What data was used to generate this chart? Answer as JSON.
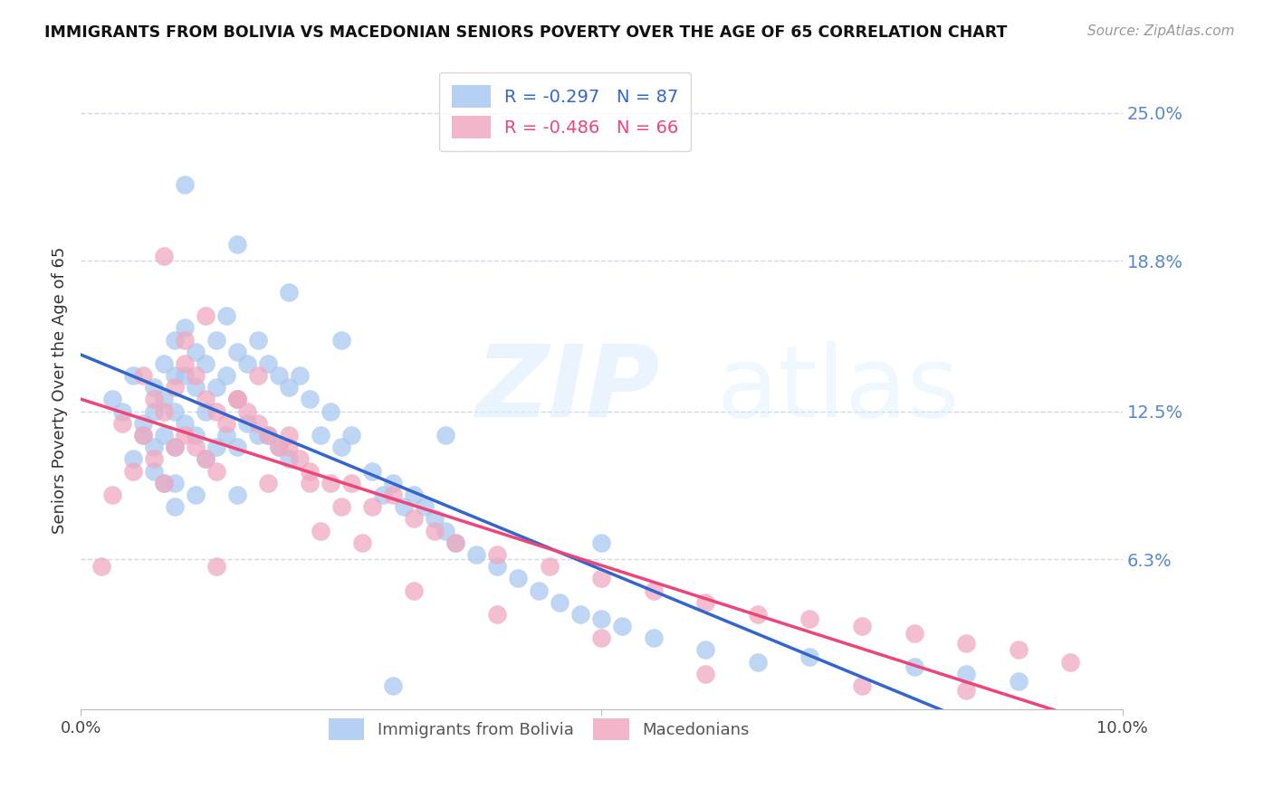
{
  "title": "IMMIGRANTS FROM BOLIVIA VS MACEDONIAN SENIORS POVERTY OVER THE AGE OF 65 CORRELATION CHART",
  "source": "Source: ZipAtlas.com",
  "ylabel": "Seniors Poverty Over the Age of 65",
  "ytick_labels": [
    "25.0%",
    "18.8%",
    "12.5%",
    "6.3%"
  ],
  "ytick_values": [
    0.25,
    0.188,
    0.125,
    0.063
  ],
  "xlim": [
    0.0,
    0.1
  ],
  "ylim": [
    0.0,
    0.268
  ],
  "legend1_label": "R = -0.297   N = 87",
  "legend2_label": "R = -0.486   N = 66",
  "series1_color": "#a8c8f0",
  "series2_color": "#f0a8c0",
  "line1_color": "#3366cc",
  "line2_color": "#ee4477",
  "line1_dash_color": "#aaccee",
  "bolivia_x": [
    0.003,
    0.004,
    0.005,
    0.005,
    0.006,
    0.006,
    0.007,
    0.007,
    0.007,
    0.007,
    0.008,
    0.008,
    0.008,
    0.008,
    0.009,
    0.009,
    0.009,
    0.009,
    0.009,
    0.009,
    0.01,
    0.01,
    0.01,
    0.011,
    0.011,
    0.011,
    0.011,
    0.012,
    0.012,
    0.012,
    0.013,
    0.013,
    0.013,
    0.014,
    0.014,
    0.014,
    0.015,
    0.015,
    0.015,
    0.015,
    0.016,
    0.016,
    0.017,
    0.017,
    0.018,
    0.018,
    0.019,
    0.019,
    0.02,
    0.02,
    0.021,
    0.022,
    0.023,
    0.024,
    0.025,
    0.026,
    0.028,
    0.029,
    0.03,
    0.031,
    0.032,
    0.033,
    0.034,
    0.035,
    0.036,
    0.038,
    0.04,
    0.042,
    0.044,
    0.046,
    0.048,
    0.05,
    0.052,
    0.055,
    0.06,
    0.065,
    0.07,
    0.08,
    0.085,
    0.09,
    0.02,
    0.035,
    0.05,
    0.01,
    0.015,
    0.025,
    0.03
  ],
  "bolivia_y": [
    0.13,
    0.125,
    0.14,
    0.105,
    0.12,
    0.115,
    0.135,
    0.125,
    0.11,
    0.1,
    0.145,
    0.13,
    0.115,
    0.095,
    0.155,
    0.14,
    0.125,
    0.11,
    0.095,
    0.085,
    0.16,
    0.14,
    0.12,
    0.15,
    0.135,
    0.115,
    0.09,
    0.145,
    0.125,
    0.105,
    0.155,
    0.135,
    0.11,
    0.165,
    0.14,
    0.115,
    0.15,
    0.13,
    0.11,
    0.09,
    0.145,
    0.12,
    0.155,
    0.115,
    0.145,
    0.115,
    0.14,
    0.11,
    0.135,
    0.105,
    0.14,
    0.13,
    0.115,
    0.125,
    0.11,
    0.115,
    0.1,
    0.09,
    0.095,
    0.085,
    0.09,
    0.085,
    0.08,
    0.075,
    0.07,
    0.065,
    0.06,
    0.055,
    0.05,
    0.045,
    0.04,
    0.038,
    0.035,
    0.03,
    0.025,
    0.02,
    0.022,
    0.018,
    0.015,
    0.012,
    0.175,
    0.115,
    0.07,
    0.22,
    0.195,
    0.155,
    0.01
  ],
  "macedonian_x": [
    0.002,
    0.003,
    0.004,
    0.005,
    0.006,
    0.006,
    0.007,
    0.007,
    0.008,
    0.008,
    0.009,
    0.009,
    0.01,
    0.01,
    0.011,
    0.011,
    0.012,
    0.012,
    0.013,
    0.013,
    0.014,
    0.015,
    0.016,
    0.017,
    0.018,
    0.019,
    0.02,
    0.021,
    0.022,
    0.024,
    0.026,
    0.028,
    0.03,
    0.032,
    0.034,
    0.036,
    0.04,
    0.045,
    0.05,
    0.055,
    0.06,
    0.065,
    0.07,
    0.075,
    0.08,
    0.085,
    0.09,
    0.095,
    0.013,
    0.018,
    0.023,
    0.01,
    0.015,
    0.02,
    0.025,
    0.008,
    0.012,
    0.017,
    0.022,
    0.027,
    0.032,
    0.04,
    0.05,
    0.06,
    0.075,
    0.085
  ],
  "macedonian_y": [
    0.06,
    0.09,
    0.12,
    0.1,
    0.14,
    0.115,
    0.13,
    0.105,
    0.125,
    0.095,
    0.135,
    0.11,
    0.145,
    0.115,
    0.14,
    0.11,
    0.13,
    0.105,
    0.125,
    0.1,
    0.12,
    0.13,
    0.125,
    0.12,
    0.115,
    0.11,
    0.115,
    0.105,
    0.1,
    0.095,
    0.095,
    0.085,
    0.09,
    0.08,
    0.075,
    0.07,
    0.065,
    0.06,
    0.055,
    0.05,
    0.045,
    0.04,
    0.038,
    0.035,
    0.032,
    0.028,
    0.025,
    0.02,
    0.06,
    0.095,
    0.075,
    0.155,
    0.13,
    0.11,
    0.085,
    0.19,
    0.165,
    0.14,
    0.095,
    0.07,
    0.05,
    0.04,
    0.03,
    0.015,
    0.01,
    0.008
  ]
}
